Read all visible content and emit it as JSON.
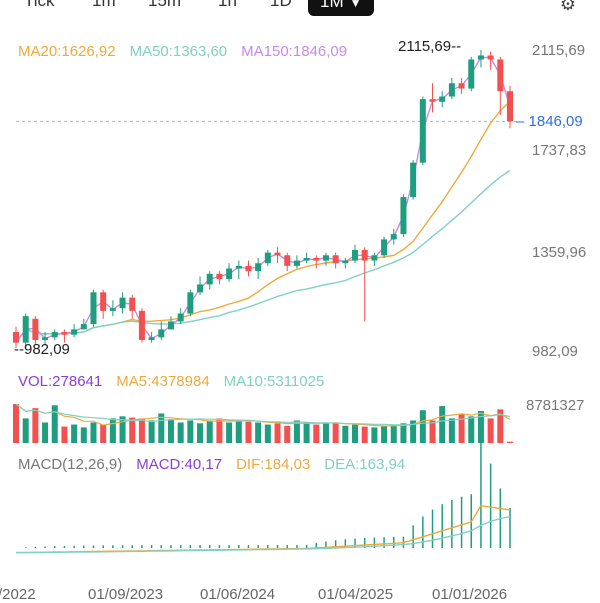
{
  "timeframes": [
    {
      "label": "Tick",
      "active": false
    },
    {
      "label": "1m",
      "active": false
    },
    {
      "label": "15m",
      "active": false
    },
    {
      "label": "1h",
      "active": false
    },
    {
      "label": "1D",
      "active": false
    },
    {
      "label": "1M",
      "active": true
    }
  ],
  "icons": {
    "settings": "gear-icon",
    "dropdown": "chevron-down-icon"
  },
  "colors": {
    "up": "#1f9d7f",
    "down": "#f2514f",
    "ma20": "#f0a93c",
    "ma50": "#7fd0c5",
    "ma150": "#c98ae8",
    "macd_label": "#8a3fd6",
    "current_price": "#2e6fe0"
  },
  "price_panel": {
    "ma20": "MA20:1626,92",
    "ma50": "MA50:1363,60",
    "ma150": "MA150:1846,09",
    "high_marker": "2115,69",
    "low_marker": "982,09",
    "y_labels": [
      "2115,69",
      "1737,83",
      "1359,96",
      "982,09"
    ],
    "current_price": "1846,09"
  },
  "volume_panel": {
    "vol": "VOL:278641",
    "ma5": "MA5:4378984",
    "ma10": "MA10:5311025",
    "y_label": "8781327"
  },
  "macd_panel": {
    "title": "MACD(12,26,9)",
    "macd": "MACD:40,17",
    "dif": "DIF:184,03",
    "dea": "DEA:163,94"
  },
  "x_labels": [
    "/2022",
    "01/09/2023",
    "01/06/2024",
    "01/04/2025",
    "01/01/2026"
  ],
  "chart_data": {
    "type": "candlestick",
    "timeframe": "1M",
    "ylim": [
      982.09,
      2115.69
    ],
    "candles": [
      [
        1050,
        1010,
        1070,
        990
      ],
      [
        1010,
        1110,
        1120,
        990
      ],
      [
        1100,
        1020,
        1110,
        1000
      ],
      [
        1020,
        1030,
        1050,
        1000
      ],
      [
        1030,
        1050,
        1060,
        1020
      ],
      [
        1050,
        1040,
        1060,
        1010
      ],
      [
        1040,
        1060,
        1080,
        1030
      ],
      [
        1060,
        1080,
        1100,
        1060
      ],
      [
        1080,
        1200,
        1210,
        1070
      ],
      [
        1200,
        1130,
        1210,
        1100
      ],
      [
        1130,
        1140,
        1170,
        1110
      ],
      [
        1140,
        1180,
        1200,
        1120
      ],
      [
        1180,
        1130,
        1190,
        1100
      ],
      [
        1130,
        1020,
        1140,
        1010
      ],
      [
        1020,
        1030,
        1050,
        1010
      ],
      [
        1030,
        1060,
        1090,
        1020
      ],
      [
        1060,
        1090,
        1110,
        1060
      ],
      [
        1090,
        1120,
        1140,
        1080
      ],
      [
        1120,
        1200,
        1210,
        1110
      ],
      [
        1200,
        1230,
        1260,
        1190
      ],
      [
        1230,
        1270,
        1280,
        1210
      ],
      [
        1270,
        1250,
        1280,
        1230
      ],
      [
        1250,
        1290,
        1310,
        1240
      ],
      [
        1290,
        1300,
        1320,
        1250
      ],
      [
        1300,
        1280,
        1320,
        1260
      ],
      [
        1280,
        1310,
        1330,
        1250
      ],
      [
        1310,
        1350,
        1360,
        1300
      ],
      [
        1350,
        1340,
        1370,
        1310
      ],
      [
        1340,
        1300,
        1350,
        1280
      ],
      [
        1300,
        1320,
        1340,
        1290
      ],
      [
        1320,
        1330,
        1350,
        1310
      ],
      [
        1330,
        1320,
        1340,
        1290
      ],
      [
        1320,
        1340,
        1350,
        1300
      ],
      [
        1340,
        1310,
        1350,
        1290
      ],
      [
        1310,
        1320,
        1330,
        1290
      ],
      [
        1320,
        1360,
        1380,
        1310
      ],
      [
        1360,
        1320,
        1370,
        1090
      ],
      [
        1320,
        1340,
        1350,
        1300
      ],
      [
        1340,
        1400,
        1410,
        1330
      ],
      [
        1400,
        1420,
        1440,
        1380
      ],
      [
        1420,
        1560,
        1570,
        1410
      ],
      [
        1560,
        1690,
        1700,
        1550
      ],
      [
        1690,
        1930,
        1940,
        1680
      ],
      [
        1930,
        1920,
        1990,
        1880
      ],
      [
        1920,
        1940,
        1960,
        1900
      ],
      [
        1940,
        1990,
        2010,
        1930
      ],
      [
        1990,
        1970,
        2010,
        1950
      ],
      [
        1970,
        2080,
        2090,
        1960
      ],
      [
        2080,
        2095,
        2115.69,
        2050
      ],
      [
        2095,
        2080,
        2110,
        2040
      ],
      [
        2080,
        1960,
        2090,
        1870
      ],
      [
        1960,
        1846.09,
        1980,
        1820
      ]
    ],
    "series": [
      {
        "name": "MA20",
        "value": 1626.92
      },
      {
        "name": "MA50",
        "value": 1363.6
      },
      {
        "name": "MA150",
        "value": 1846.09
      }
    ],
    "volume": {
      "max": 8781327,
      "vol": 278641,
      "ma5": 4378984,
      "ma10": 5311025
    },
    "macd": {
      "params": "12,26,9",
      "macd": 40.17,
      "dif": 184.03,
      "dea": 163.94
    }
  }
}
